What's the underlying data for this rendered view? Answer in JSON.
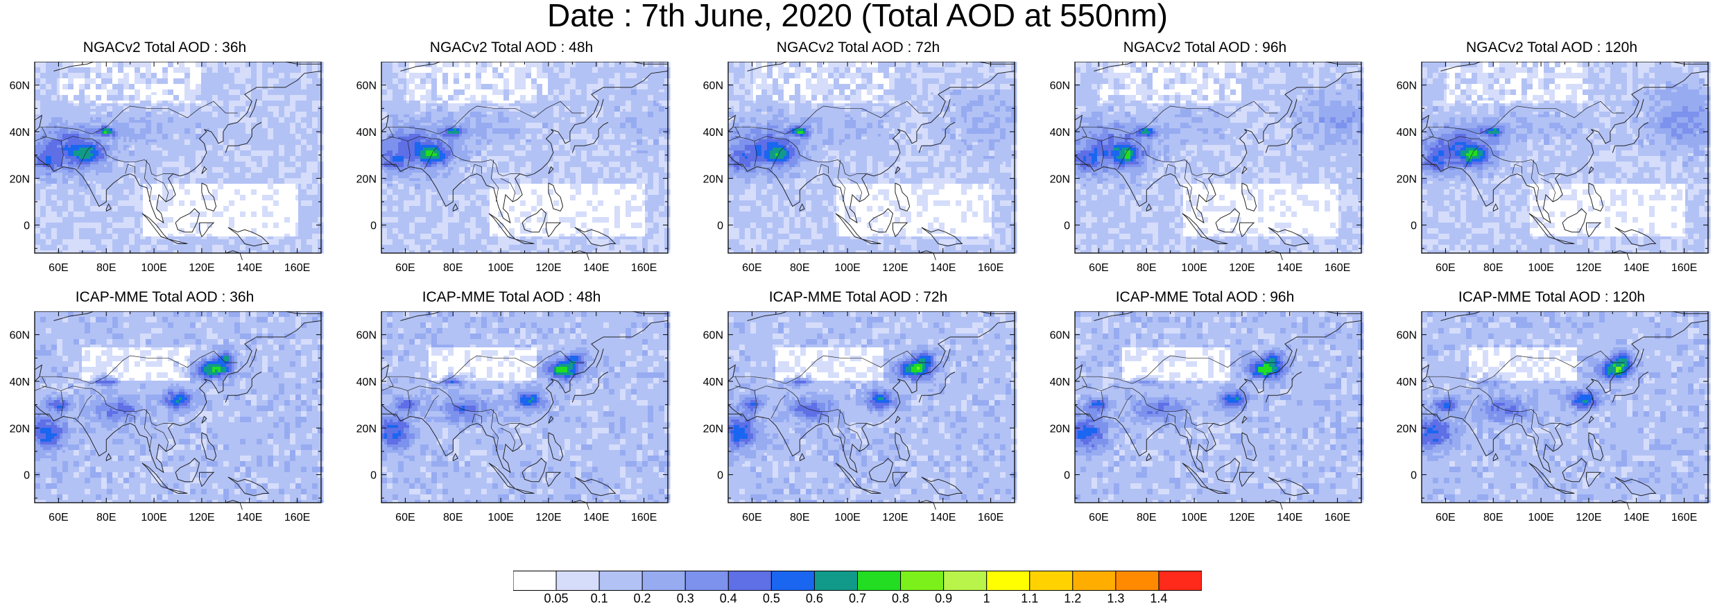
{
  "title": "Date : 7th June, 2020 (Total AOD at 550nm)",
  "lon_ticks": [
    "60E",
    "80E",
    "100E",
    "120E",
    "140E",
    "160E"
  ],
  "lat_ticks": [
    "60N",
    "40N",
    "20N",
    "0"
  ],
  "rows": [
    {
      "model": "NGACv2",
      "panels": [
        {
          "title": "NGACv2 Total AOD : 36h"
        },
        {
          "title": "NGACv2 Total AOD : 48h"
        },
        {
          "title": "NGACv2 Total AOD : 72h"
        },
        {
          "title": "NGACv2 Total AOD : 96h"
        },
        {
          "title": "NGACv2 Total AOD : 120h"
        }
      ]
    },
    {
      "model": "ICAP-MME",
      "panels": [
        {
          "title": "ICAP-MME Total AOD : 36h"
        },
        {
          "title": "ICAP-MME Total AOD : 48h"
        },
        {
          "title": "ICAP-MME Total AOD : 72h"
        },
        {
          "title": "ICAP-MME Total AOD : 96h"
        },
        {
          "title": "ICAP-MME Total AOD : 120h"
        }
      ]
    }
  ],
  "colorbar": {
    "labels": [
      "0.05",
      "0.1",
      "0.2",
      "0.3",
      "0.4",
      "0.5",
      "0.6",
      "0.7",
      "0.8",
      "0.9",
      "1",
      "1.1",
      "1.2",
      "1.3",
      "1.4"
    ],
    "colors": [
      "#ffffff",
      "#d5ddfb",
      "#b3c2f5",
      "#97abf1",
      "#7d92ec",
      "#5f6fe6",
      "#1a66f0",
      "#119a8a",
      "#22dd22",
      "#7cf01a",
      "#b8f44a",
      "#ffff00",
      "#ffd200",
      "#ffae00",
      "#ff8a00",
      "#ff2a1a"
    ]
  }
}
